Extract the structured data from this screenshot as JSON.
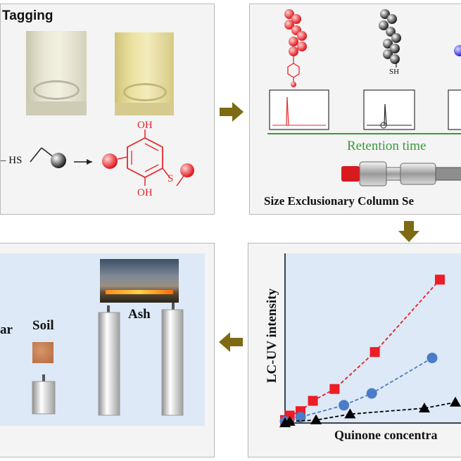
{
  "panel_tagging": {
    "title": "Tagging",
    "reagent_label": "– HS",
    "oh_top": "OH",
    "oh_bottom": "OH",
    "s_label": "S"
  },
  "panel_sec": {
    "sh_label": "SH",
    "retention_label": "Retention time",
    "column_title": "Size Exclusionary Column Se"
  },
  "panel_samples": {
    "char_label": "ar",
    "soil_label": "Soil",
    "ash_label": "Ash"
  },
  "chart_data": {
    "type": "scatter",
    "xlabel": "Quinone concentra",
    "ylabel": "LC-UV intensity",
    "series": [
      {
        "marker": "square",
        "color": "#ee1c24",
        "line": "dashed",
        "values": [
          [
            0.0,
            0.02
          ],
          [
            0.03,
            0.05
          ],
          [
            0.1,
            0.08
          ],
          [
            0.18,
            0.15
          ],
          [
            0.32,
            0.23
          ],
          [
            0.58,
            0.48
          ],
          [
            1.0,
            0.97
          ]
        ]
      },
      {
        "marker": "circle",
        "color": "#4a7cc9",
        "line": "dashed",
        "values": [
          [
            0.0,
            0.01
          ],
          [
            0.1,
            0.04
          ],
          [
            0.38,
            0.12
          ],
          [
            0.56,
            0.2
          ],
          [
            0.95,
            0.44
          ]
        ]
      },
      {
        "marker": "triangle",
        "color": "#000000",
        "line": "dashed",
        "values": [
          [
            0.0,
            0.0
          ],
          [
            0.03,
            0.01
          ],
          [
            0.2,
            0.02
          ],
          [
            0.42,
            0.06
          ],
          [
            0.9,
            0.1
          ],
          [
            1.1,
            0.14
          ]
        ]
      }
    ]
  },
  "colors": {
    "panel_bg_gray": "#f4f4f4",
    "panel_bg_blue": "#dde9f6",
    "arrow": "#7d6a12",
    "accent_red": "#e8262a",
    "retention_green": "#3a9a3a"
  },
  "icons": [
    "arrow-right-icon",
    "arrow-down-icon",
    "arrow-left-icon"
  ]
}
